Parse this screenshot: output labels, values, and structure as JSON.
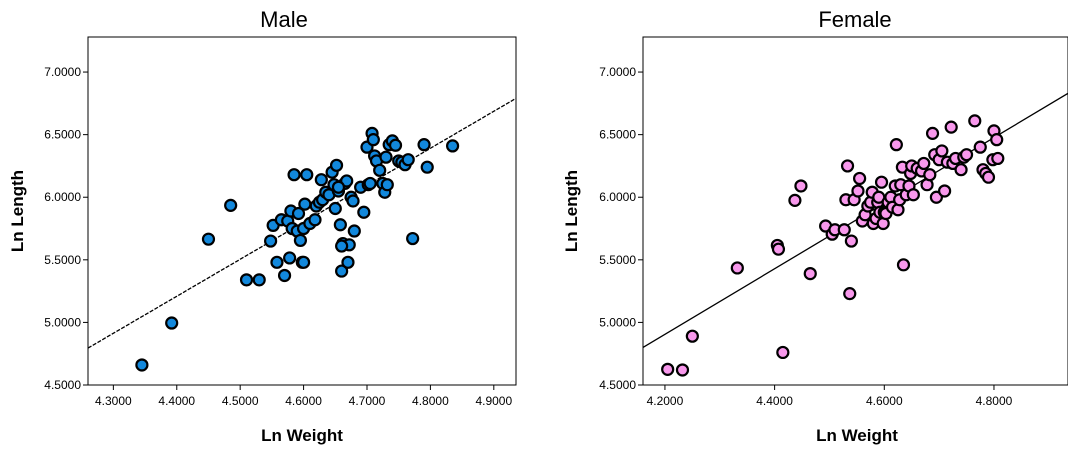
{
  "chart_data": [
    {
      "type": "scatter",
      "title": "Male",
      "xlabel": "Ln Weight",
      "ylabel": "Ln Length",
      "xlim": [
        4.26,
        4.935
      ],
      "ylim": [
        4.5,
        7.28
      ],
      "xticks": [
        "4.3000",
        "4.4000",
        "4.5000",
        "4.6000",
        "4.7000",
        "4.8000",
        "4.9000"
      ],
      "yticks": [
        "4.5000",
        "5.0000",
        "5.5000",
        "6.0000",
        "6.5000",
        "7.0000"
      ],
      "marker_color": "#1288dc",
      "line_style": "dashed",
      "fit_line": {
        "x": [
          4.26,
          4.935
        ],
        "y": [
          4.795,
          6.79
        ]
      },
      "x": [
        4.345,
        4.392,
        4.45,
        4.485,
        4.51,
        4.53,
        4.548,
        4.552,
        4.558,
        4.565,
        4.57,
        4.575,
        4.578,
        4.58,
        4.582,
        4.585,
        4.59,
        4.592,
        4.595,
        4.598,
        4.6,
        4.602,
        4.605,
        4.61,
        4.618,
        4.62,
        4.625,
        4.628,
        4.63,
        4.635,
        4.64,
        4.645,
        4.648,
        4.65,
        4.652,
        4.655,
        4.658,
        4.66,
        4.662,
        4.665,
        4.668,
        4.67,
        4.672,
        4.675,
        4.678,
        4.68,
        4.69,
        4.695,
        4.7,
        4.702,
        4.705,
        4.708,
        4.71,
        4.712,
        4.715,
        4.72,
        4.725,
        4.728,
        4.73,
        4.732,
        4.735,
        4.74,
        4.745,
        4.75,
        4.755,
        4.76,
        4.765,
        4.772,
        4.79,
        4.795,
        4.835,
        4.6,
        4.655,
        4.66
      ],
      "y": [
        4.66,
        4.995,
        5.665,
        5.935,
        5.34,
        5.34,
        5.65,
        5.775,
        5.48,
        5.82,
        5.375,
        5.81,
        5.515,
        5.89,
        5.75,
        6.18,
        5.73,
        5.87,
        5.655,
        5.48,
        5.75,
        5.945,
        6.18,
        5.79,
        5.82,
        5.93,
        5.96,
        6.14,
        5.98,
        6.04,
        6.02,
        6.2,
        6.1,
        5.91,
        6.255,
        6.05,
        5.78,
        5.41,
        5.63,
        6.11,
        6.13,
        5.48,
        5.62,
        6.0,
        5.97,
        5.73,
        6.08,
        5.88,
        6.4,
        6.1,
        6.11,
        6.51,
        6.46,
        6.33,
        6.29,
        6.215,
        6.11,
        6.04,
        6.32,
        6.1,
        6.42,
        6.45,
        6.415,
        6.29,
        6.28,
        6.26,
        6.3,
        5.67,
        6.42,
        6.24,
        6.41,
        5.48,
        6.08,
        5.61
      ]
    },
    {
      "type": "scatter",
      "title": "Female",
      "xlabel": "Ln Weight",
      "ylabel": "Ln Length",
      "xlim": [
        4.16,
        4.935
      ],
      "ylim": [
        4.5,
        7.28
      ],
      "xticks": [
        "4.2000",
        "4.4000",
        "4.6000",
        "4.8000"
      ],
      "yticks": [
        "4.5000",
        "5.0000",
        "5.5000",
        "6.0000",
        "6.5000",
        "7.0000"
      ],
      "marker_color": "#f898ec",
      "line_style": "solid",
      "fit_line": {
        "x": [
          4.16,
          4.935
        ],
        "y": [
          4.8,
          6.83
        ]
      },
      "x": [
        4.205,
        4.232,
        4.25,
        4.332,
        4.405,
        4.407,
        4.415,
        4.437,
        4.448,
        4.465,
        4.493,
        4.505,
        4.51,
        4.527,
        4.53,
        4.533,
        4.537,
        4.54,
        4.545,
        4.552,
        4.555,
        4.56,
        4.565,
        4.57,
        4.575,
        4.578,
        4.58,
        4.585,
        4.588,
        4.59,
        4.592,
        4.595,
        4.598,
        4.6,
        4.603,
        4.607,
        4.612,
        4.615,
        4.62,
        4.622,
        4.625,
        4.628,
        4.63,
        4.633,
        4.635,
        4.64,
        4.645,
        4.648,
        4.65,
        4.653,
        4.66,
        4.668,
        4.672,
        4.678,
        4.683,
        4.688,
        4.692,
        4.695,
        4.7,
        4.705,
        4.71,
        4.715,
        4.722,
        4.725,
        4.73,
        4.74,
        4.745,
        4.75,
        4.765,
        4.775,
        4.78,
        4.785,
        4.79,
        4.798,
        4.8,
        4.805,
        4.807
      ],
      "y": [
        4.625,
        4.62,
        4.89,
        5.435,
        5.615,
        5.585,
        4.76,
        5.975,
        6.09,
        5.39,
        5.77,
        5.705,
        5.74,
        5.74,
        5.98,
        6.25,
        5.23,
        5.65,
        5.98,
        6.05,
        6.15,
        5.81,
        5.86,
        5.93,
        5.96,
        6.04,
        5.79,
        5.83,
        5.96,
        6.0,
        5.88,
        6.12,
        5.79,
        5.88,
        5.87,
        5.96,
        6.0,
        5.92,
        6.09,
        6.42,
        5.9,
        5.98,
        6.1,
        6.24,
        5.46,
        6.02,
        6.09,
        6.19,
        6.25,
        6.02,
        6.23,
        6.21,
        6.27,
        6.1,
        6.18,
        6.51,
        6.34,
        6.0,
        6.3,
        6.37,
        6.05,
        6.28,
        6.56,
        6.27,
        6.31,
        6.22,
        6.32,
        6.34,
        6.61,
        6.4,
        6.22,
        6.19,
        6.16,
        6.3,
        6.53,
        6.46,
        6.31
      ]
    }
  ]
}
